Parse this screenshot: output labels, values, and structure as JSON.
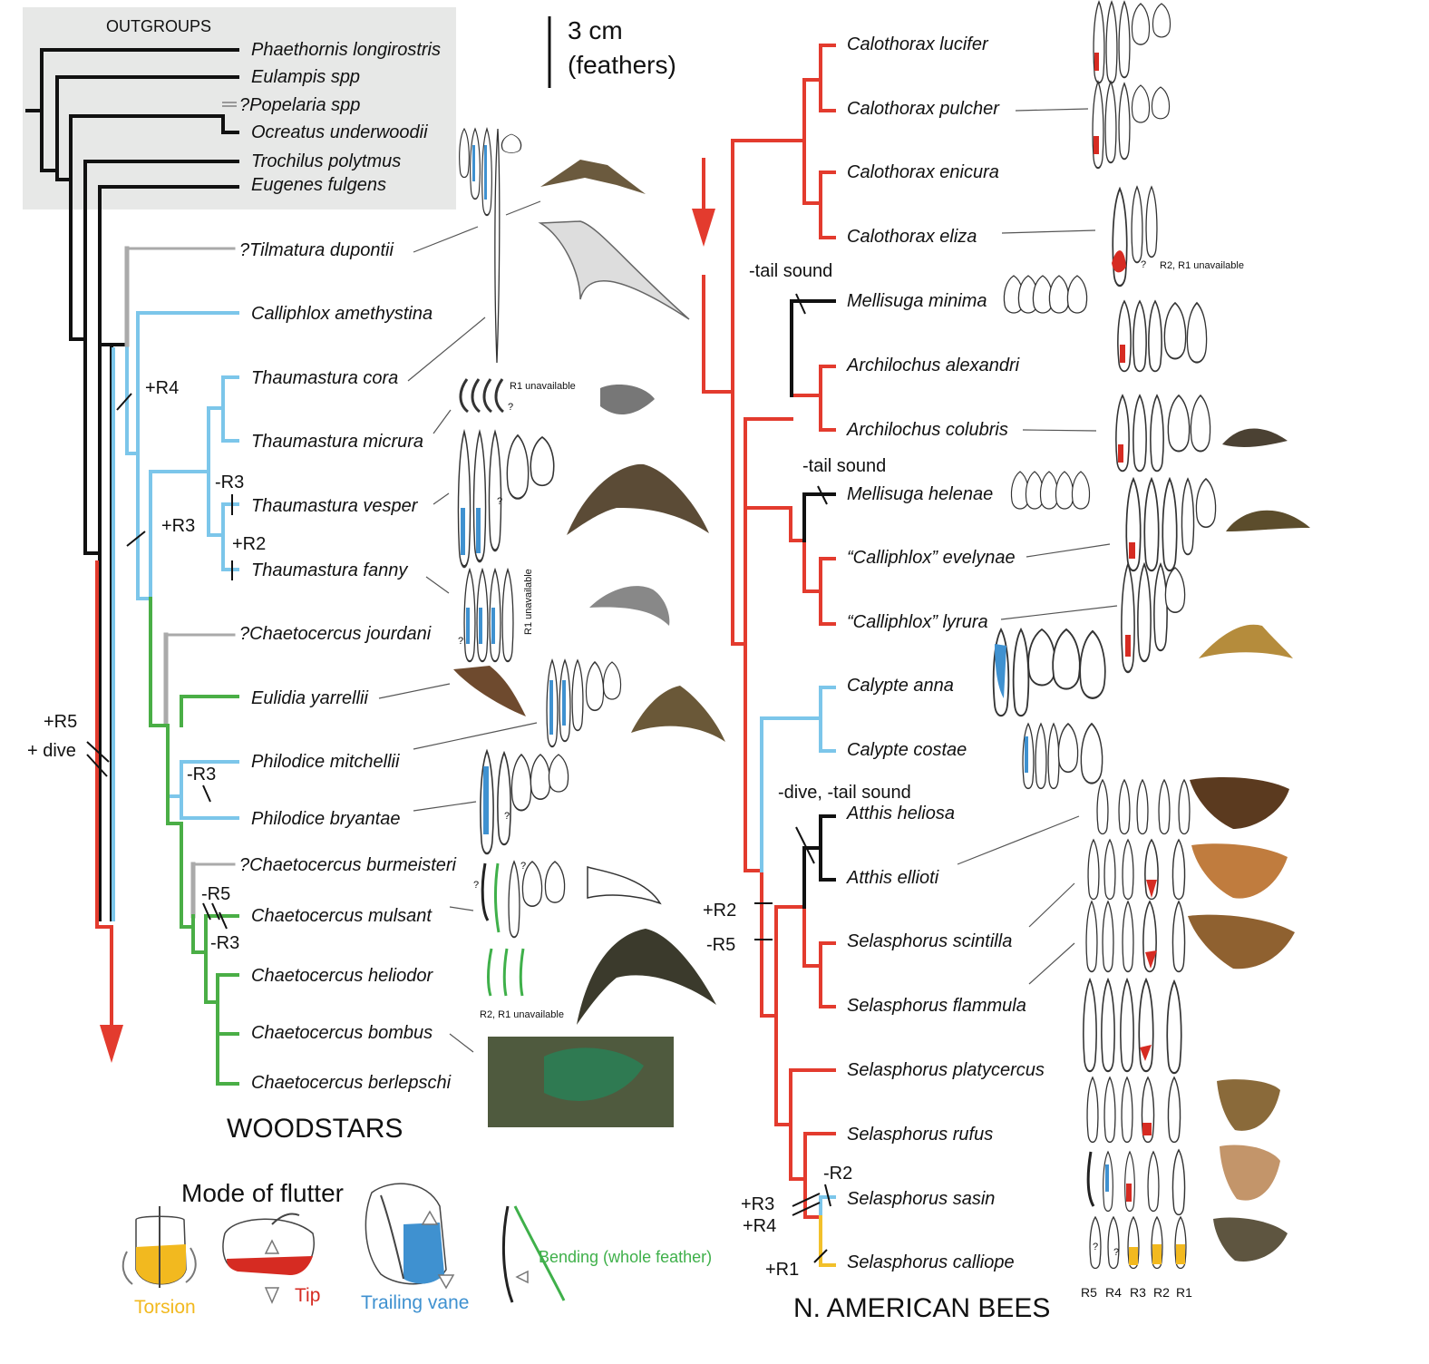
{
  "colors": {
    "black": "#111111",
    "blue": "#7cc6ea",
    "green": "#4aae46",
    "red": "#e33b2e",
    "yellow": "#f2c02b",
    "gray_box": "#e7e8e7",
    "fill_blue": "#3f91d0",
    "fill_red": "#d62b22",
    "fill_green": "#3fb04a",
    "fill_yellow": "#f2b91f"
  },
  "outgroups_label": "OUTGROUPS",
  "scale_bar": {
    "line1": "3 cm",
    "line2": "(feathers)"
  },
  "woodstars": {
    "title": "WOODSTARS",
    "species": [
      "Phaethornis longirostris",
      "Eulampis spp",
      "?Popelaria spp",
      "Ocreatus underwoodii",
      "Trochilus polytmus",
      "Eugenes fulgens",
      "?Tilmatura dupontii",
      "Calliphlox amethystina",
      "Thaumastura cora",
      "Thaumastura micrura",
      "Thaumastura vesper",
      "Thaumastura fanny",
      "?Chaetocercus jourdani",
      "Eulidia yarrellii",
      "Philodice mitchellii",
      "Philodice bryantae",
      "?Chaetocercus burmeisteri",
      "Chaetocercus mulsant",
      "Chaetocercus heliodor",
      "Chaetocercus bombus",
      "Chaetocercus berlepschi"
    ],
    "events": [
      "+R4",
      "-R3",
      "+R3",
      "+R2",
      "+R5",
      "+ dive",
      "-R3",
      "-R5",
      "-R3"
    ]
  },
  "bees": {
    "title": "N. AMERICAN BEES",
    "species": [
      "Calothorax lucifer",
      "Calothorax pulcher",
      "Calothorax enicura",
      "Calothorax eliza",
      "Mellisuga minima",
      "Archilochus alexandri",
      "Archilochus colubris",
      "Mellisuga helenae",
      "“Calliphlox” evelynae",
      "“Calliphlox” lyrura",
      "Calypte anna",
      "Calypte costae",
      "Atthis heliosa",
      "Atthis ellioti",
      "Selasphorus scintilla",
      "Selasphorus flammula",
      "Selasphorus platycercus",
      "Selasphorus rufus",
      "Selasphorus sasin",
      "Selasphorus calliope"
    ],
    "events": [
      "-tail sound",
      "-tail sound",
      "-dive, -tail sound",
      "+R2",
      "-R5",
      "-R2",
      "+R3",
      "+R4",
      "+R1"
    ]
  },
  "notes": {
    "r1_unavailable": "R1 unavailable",
    "r2r1_unavailable_a": "R2, R1 unavailable",
    "r2r1_unavailable_b": "R2, R1 unavailable",
    "r1_unavailable_vertical": "R1 unavailable",
    "question": "?"
  },
  "feather_axis": [
    "R5",
    "R4",
    "R3",
    "R2",
    "R1"
  ],
  "legend": {
    "title": "Mode of flutter",
    "torsion": "Torsion",
    "tip": "Tip",
    "trailing": "Trailing vane",
    "bending": "Bending (whole feather)"
  }
}
